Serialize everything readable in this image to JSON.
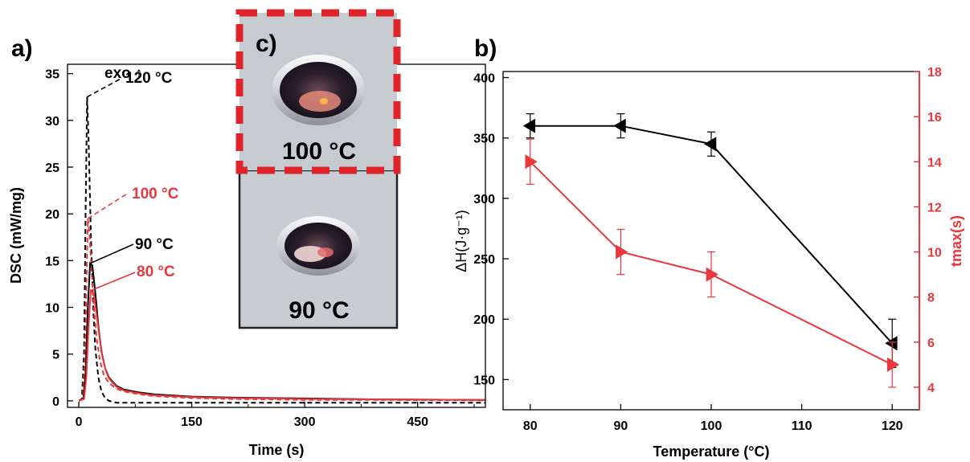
{
  "colors": {
    "black": "#000000",
    "red": "#e8383d"
  },
  "panels": {
    "a": {
      "label": "a)"
    },
    "b": {
      "label": "b)"
    },
    "c": {
      "label": "c)",
      "photo_top_label": "100 °C",
      "photo_bottom_label": "90 °C"
    }
  },
  "chart_data": [
    {
      "panel": "a",
      "type": "line",
      "xlabel": "Time (s)",
      "ylabel": "DSC (mW/mg)",
      "xlim": [
        -15,
        540
      ],
      "ylim": [
        -0.7,
        36
      ],
      "xticks": [
        0,
        150,
        300,
        450
      ],
      "yticks": [
        0,
        5,
        10,
        15,
        20,
        25,
        30,
        35
      ],
      "annotations": [
        {
          "text": "exo ↑",
          "color": "#000000"
        },
        {
          "text": "120 °C",
          "color": "#000000"
        },
        {
          "text": "100 °C",
          "color": "#e8383d"
        },
        {
          "text": "90 °C",
          "color": "#000000"
        },
        {
          "text": "80 °C",
          "color": "#e8383d"
        }
      ],
      "series": [
        {
          "label_ref": "120 °C",
          "color": "#000000",
          "dash": true,
          "x": [
            0,
            4,
            7,
            9,
            11,
            13,
            16,
            19,
            22,
            26,
            30,
            35,
            40,
            50,
            60,
            540
          ],
          "y": [
            0,
            0.2,
            5,
            20,
            32.5,
            28,
            18,
            10,
            5.5,
            2.5,
            1.0,
            0.3,
            0,
            -0.2,
            -0.2,
            -0.2
          ]
        },
        {
          "label_ref": "100 °C",
          "color": "#e8383d",
          "dash": true,
          "x": [
            0,
            5,
            8,
            10,
            12,
            14,
            17,
            20,
            24,
            28,
            33,
            40,
            50,
            60,
            80,
            100,
            150,
            200,
            300,
            400,
            540
          ],
          "y": [
            0,
            0.2,
            4,
            12,
            19.5,
            18,
            14,
            10,
            6.5,
            4.3,
            2.8,
            1.9,
            1.3,
            1.0,
            0.7,
            0.5,
            0.3,
            0.2,
            0.1,
            0.1,
            0.05
          ]
        },
        {
          "label_ref": "90 °C",
          "color": "#000000",
          "dash": false,
          "x": [
            0,
            6,
            9,
            12,
            15,
            18,
            22,
            26,
            30,
            35,
            40,
            50,
            60,
            80,
            100,
            150,
            200,
            250,
            300,
            400,
            540
          ],
          "y": [
            0,
            0.2,
            3,
            10,
            14.7,
            14.5,
            11.5,
            8,
            5.3,
            3.5,
            2.5,
            1.6,
            1.2,
            0.9,
            0.7,
            0.45,
            0.35,
            0.3,
            0.25,
            0.15,
            0.1
          ]
        },
        {
          "label_ref": "80 °C",
          "color": "#e8383d",
          "dash": false,
          "x": [
            0,
            7,
            10,
            13,
            16,
            20,
            24,
            28,
            32,
            36,
            40,
            50,
            60,
            80,
            100,
            150,
            200,
            250,
            300,
            400,
            540
          ],
          "y": [
            0,
            0.2,
            2.5,
            8,
            11.8,
            11.5,
            9,
            6.5,
            4.5,
            3.2,
            2.4,
            1.5,
            1.1,
            0.8,
            0.6,
            0.4,
            0.3,
            0.25,
            0.2,
            0.15,
            0.1
          ]
        }
      ]
    },
    {
      "panel": "b",
      "type": "scatter",
      "xlabel": "Temperature (°C)",
      "ylabel": "ΔH(J·g⁻¹)",
      "y2label": "tmax(s)",
      "xlim": [
        77,
        123
      ],
      "ylim": [
        125,
        405
      ],
      "y2lim": [
        3,
        18
      ],
      "xticks": [
        80,
        90,
        100,
        110,
        120
      ],
      "yticks": [
        150,
        200,
        250,
        300,
        350,
        400
      ],
      "y2ticks": [
        4,
        6,
        8,
        10,
        12,
        14,
        16,
        18
      ],
      "series": [
        {
          "axis": "left",
          "color": "#000000",
          "marker": "triangle-left",
          "x": [
            80,
            90,
            100,
            120
          ],
          "y": [
            360,
            360,
            345,
            180
          ],
          "err": [
            10,
            10,
            10,
            20
          ]
        },
        {
          "axis": "right",
          "color": "#e8383d",
          "marker": "triangle-right",
          "x": [
            80,
            90,
            100,
            120
          ],
          "y": [
            14,
            10,
            9,
            5
          ],
          "err": [
            1,
            1,
            1,
            1
          ]
        }
      ]
    }
  ]
}
